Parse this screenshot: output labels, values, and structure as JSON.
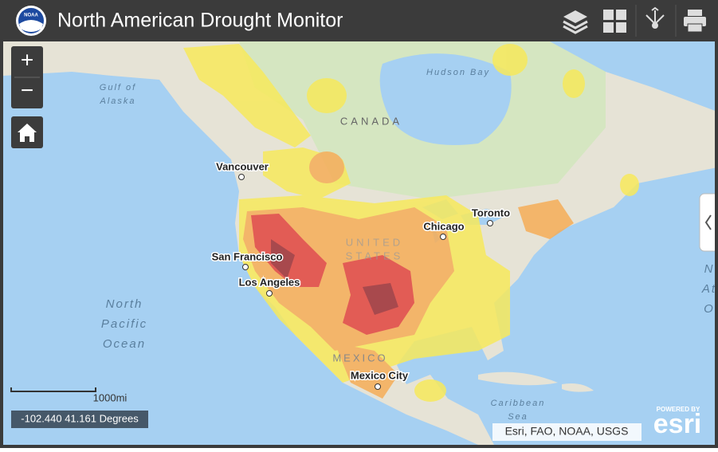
{
  "header": {
    "logo": "NOAA",
    "title": "North American Drought Monitor"
  },
  "controls": {
    "zoom_in": "+",
    "zoom_out": "−"
  },
  "map": {
    "labels": [
      {
        "lines": [
          "Gulf of",
          "Alaska"
        ]
      },
      {
        "lines": [
          "Hudson Bay"
        ]
      },
      {
        "lines": [
          "CANADA"
        ]
      },
      {
        "lines": [
          "Vancouver"
        ]
      },
      {
        "lines": [
          "Toronto"
        ]
      },
      {
        "lines": [
          "Chicago"
        ]
      },
      {
        "lines": [
          "UNITED",
          "STATES"
        ]
      },
      {
        "lines": [
          "San Francisco"
        ]
      },
      {
        "lines": [
          "Los Angeles"
        ]
      },
      {
        "lines": [
          "North",
          "Pacific",
          "Ocean"
        ]
      },
      {
        "lines": [
          "MEXICO"
        ]
      },
      {
        "lines": [
          "Mexico City"
        ]
      },
      {
        "lines": [
          "Caribbean",
          "Sea"
        ]
      },
      {
        "lines": [
          "N",
          "At",
          "O"
        ]
      }
    ]
  },
  "scale": "1000mi",
  "coordinates": "-102.440 41.161 Degrees",
  "attribution": "Esri, FAO, NOAA, USGS",
  "esri": {
    "powered_by": "POWERED BY",
    "logo": "esri"
  }
}
